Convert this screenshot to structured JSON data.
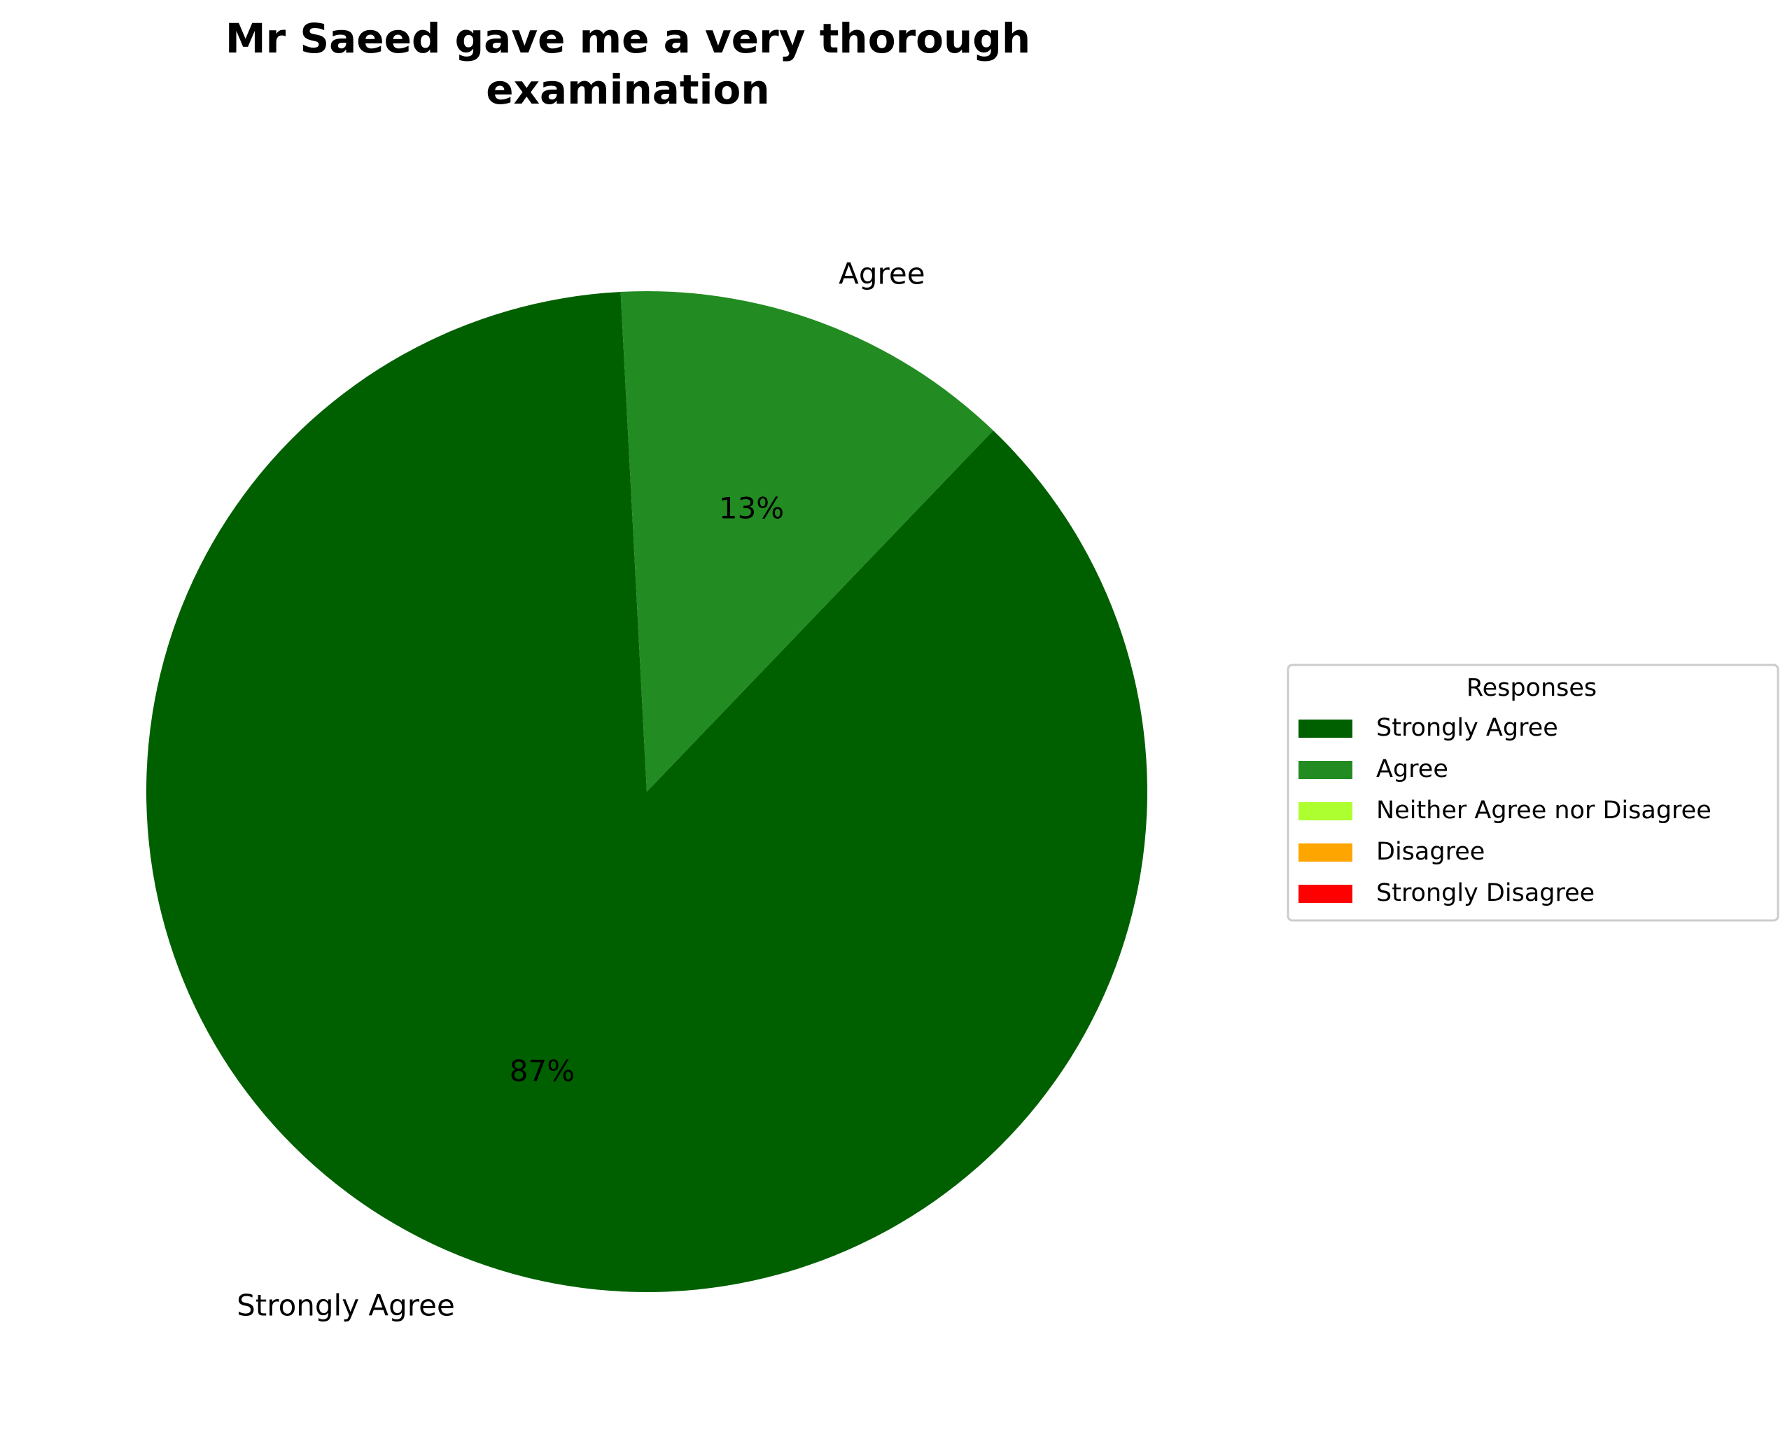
{
  "chart_data": {
    "type": "pie",
    "title": "Mr Saeed gave me a very thorough examination",
    "title_lines": [
      "Mr Saeed gave me a very thorough",
      "examination"
    ],
    "categories": [
      "Strongly Agree",
      "Agree",
      "Neither Agree nor Disagree",
      "Disagree",
      "Strongly Disagree"
    ],
    "values": [
      87,
      13,
      0,
      0,
      0
    ],
    "percent_labels": [
      "87%",
      "13%",
      "",
      "",
      ""
    ],
    "colors": [
      "#006000",
      "#228B22",
      "#ADFF2F",
      "#FFA500",
      "#FF0000"
    ],
    "legend": {
      "title": "Responses",
      "placement": "center-right",
      "entries": [
        "Strongly Agree",
        "Agree",
        "Neither Agree nor Disagree",
        "Disagree",
        "Strongly Disagree"
      ]
    },
    "start_angle_deg": 93,
    "direction": "counterclockwise"
  }
}
